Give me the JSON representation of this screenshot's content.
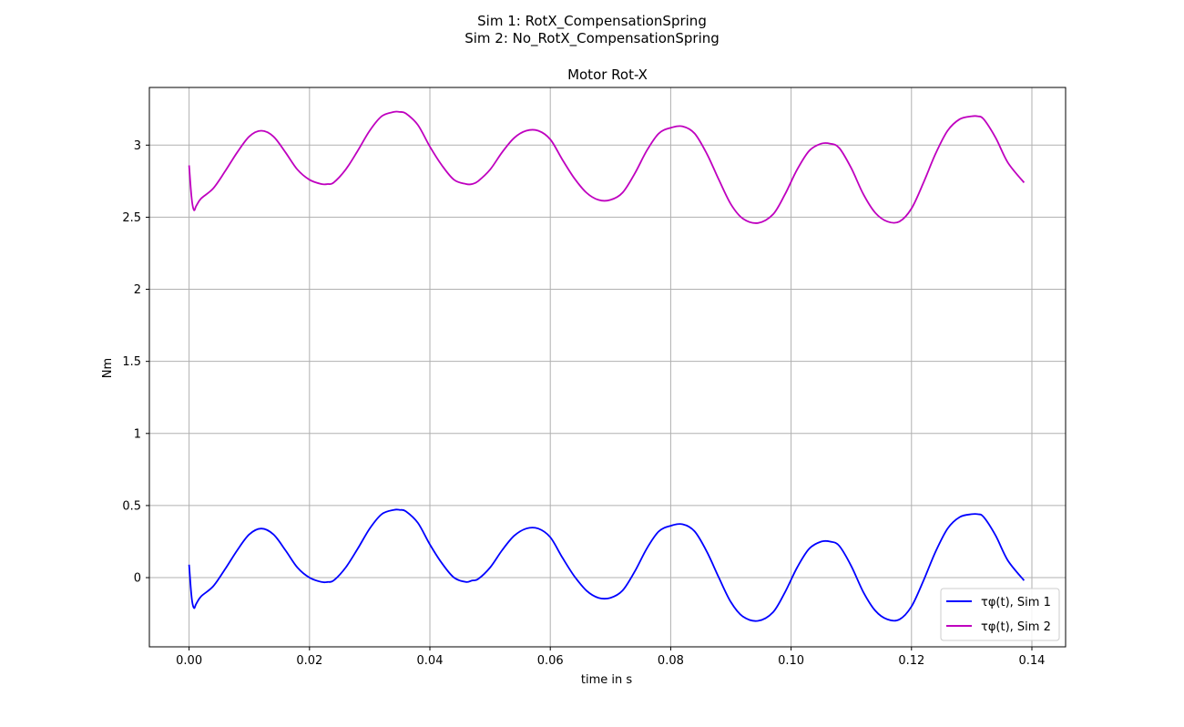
{
  "figure": {
    "suptitle_line1": "Sim 1: RotX_CompensationSpring",
    "suptitle_line2": "Sim 2: No_RotX_CompensationSpring"
  },
  "chart_data": {
    "type": "line",
    "title": "Motor Rot-X",
    "xlabel": "time in s",
    "ylabel": "Nm",
    "xlim": [
      -0.0066,
      0.1456
    ],
    "ylim": [
      -0.48,
      3.4
    ],
    "xticks": [
      0.0,
      0.02,
      0.04,
      0.06,
      0.08,
      0.1,
      0.12,
      0.14
    ],
    "xtick_labels": [
      "0.00",
      "0.02",
      "0.04",
      "0.06",
      "0.08",
      "0.10",
      "0.12",
      "0.14"
    ],
    "yticks": [
      0,
      0.5,
      1,
      1.5,
      2,
      2.5,
      3
    ],
    "ytick_labels": [
      "0",
      "0.5",
      "1",
      "1.5",
      "2",
      "2.5",
      "3"
    ],
    "grid": true,
    "legend_position": "lower-right",
    "series": [
      {
        "name": "τφ(t), Sim 1",
        "color": "#0000ff",
        "x": [
          0.0,
          0.0004,
          0.0008,
          0.0012,
          0.002,
          0.004,
          0.006,
          0.008,
          0.01,
          0.012,
          0.014,
          0.016,
          0.018,
          0.02,
          0.022,
          0.023,
          0.024,
          0.026,
          0.028,
          0.03,
          0.032,
          0.034,
          0.035,
          0.036,
          0.038,
          0.04,
          0.042,
          0.044,
          0.046,
          0.047,
          0.048,
          0.05,
          0.052,
          0.054,
          0.056,
          0.058,
          0.06,
          0.062,
          0.064,
          0.066,
          0.068,
          0.07,
          0.072,
          0.074,
          0.076,
          0.078,
          0.08,
          0.082,
          0.084,
          0.086,
          0.088,
          0.09,
          0.092,
          0.0945,
          0.097,
          0.099,
          0.101,
          0.103,
          0.105,
          0.1065,
          0.108,
          0.11,
          0.112,
          0.114,
          0.116,
          0.118,
          0.12,
          0.122,
          0.124,
          0.126,
          0.128,
          0.13,
          0.131,
          0.132,
          0.134,
          0.136,
          0.1387
        ],
        "y": [
          0.09,
          -0.13,
          -0.21,
          -0.18,
          -0.13,
          -0.06,
          0.06,
          0.19,
          0.3,
          0.34,
          0.3,
          0.19,
          0.07,
          0.0,
          -0.03,
          -0.03,
          -0.02,
          0.07,
          0.2,
          0.34,
          0.44,
          0.47,
          0.47,
          0.46,
          0.38,
          0.23,
          0.1,
          0.0,
          -0.03,
          -0.02,
          -0.01,
          0.07,
          0.19,
          0.29,
          0.34,
          0.34,
          0.28,
          0.14,
          0.01,
          -0.09,
          -0.14,
          -0.14,
          -0.09,
          0.04,
          0.2,
          0.32,
          0.36,
          0.37,
          0.32,
          0.18,
          0.0,
          -0.17,
          -0.27,
          -0.3,
          -0.24,
          -0.1,
          0.07,
          0.2,
          0.25,
          0.25,
          0.22,
          0.08,
          -0.1,
          -0.23,
          -0.29,
          -0.29,
          -0.2,
          -0.02,
          0.18,
          0.34,
          0.42,
          0.44,
          0.44,
          0.42,
          0.29,
          0.12,
          -0.02
        ]
      },
      {
        "name": "τφ(t), Sim 2",
        "color": "#bf00bf",
        "x": [
          0.0,
          0.0004,
          0.0008,
          0.0012,
          0.002,
          0.004,
          0.006,
          0.008,
          0.01,
          0.012,
          0.014,
          0.016,
          0.018,
          0.02,
          0.022,
          0.023,
          0.024,
          0.026,
          0.028,
          0.03,
          0.032,
          0.034,
          0.035,
          0.036,
          0.038,
          0.04,
          0.042,
          0.044,
          0.046,
          0.047,
          0.048,
          0.05,
          0.052,
          0.054,
          0.056,
          0.058,
          0.06,
          0.062,
          0.064,
          0.066,
          0.068,
          0.07,
          0.072,
          0.074,
          0.076,
          0.078,
          0.08,
          0.082,
          0.084,
          0.086,
          0.088,
          0.09,
          0.092,
          0.0945,
          0.097,
          0.099,
          0.101,
          0.103,
          0.105,
          0.1065,
          0.108,
          0.11,
          0.112,
          0.114,
          0.116,
          0.118,
          0.12,
          0.122,
          0.124,
          0.126,
          0.128,
          0.13,
          0.131,
          0.132,
          0.134,
          0.136,
          0.1387
        ],
        "y": [
          2.86,
          2.64,
          2.55,
          2.58,
          2.63,
          2.7,
          2.82,
          2.95,
          3.06,
          3.1,
          3.06,
          2.95,
          2.83,
          2.76,
          2.73,
          2.73,
          2.74,
          2.83,
          2.96,
          3.1,
          3.2,
          3.23,
          3.23,
          3.22,
          3.14,
          2.99,
          2.86,
          2.76,
          2.73,
          2.73,
          2.75,
          2.83,
          2.95,
          3.05,
          3.1,
          3.1,
          3.04,
          2.9,
          2.77,
          2.67,
          2.62,
          2.62,
          2.67,
          2.8,
          2.96,
          3.08,
          3.12,
          3.13,
          3.08,
          2.94,
          2.76,
          2.59,
          2.49,
          2.46,
          2.52,
          2.66,
          2.83,
          2.96,
          3.01,
          3.01,
          2.98,
          2.84,
          2.66,
          2.53,
          2.47,
          2.47,
          2.56,
          2.74,
          2.94,
          3.1,
          3.18,
          3.2,
          3.2,
          3.18,
          3.05,
          2.88,
          2.74
        ]
      }
    ]
  }
}
